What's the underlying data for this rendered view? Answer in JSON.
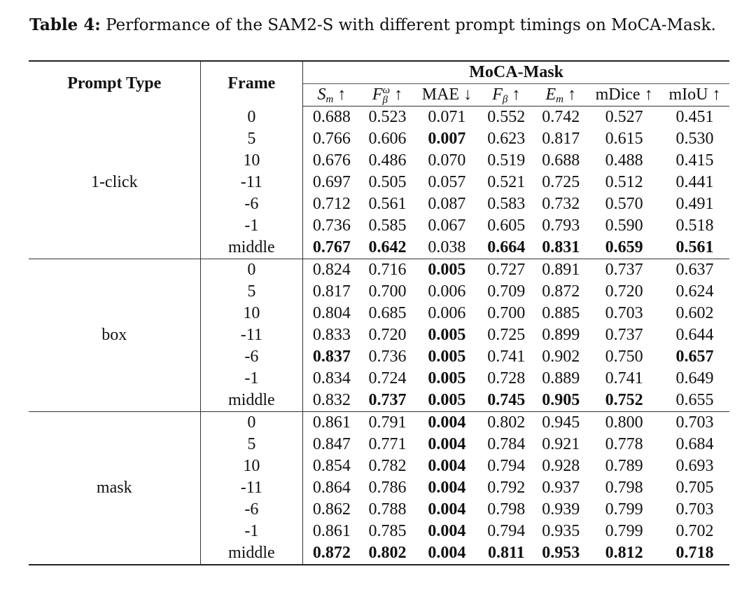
{
  "caption": {
    "label": "Table 4:",
    "text": "Performance of the SAM2-S with different prompt timings on MoCA-Mask."
  },
  "header": {
    "prompt_type": "Prompt Type",
    "frame": "Frame",
    "dataset": "MoCA-Mask",
    "metrics": [
      {
        "main": "S",
        "sub": "m",
        "sup": "",
        "italic": true,
        "arrow": "↑"
      },
      {
        "main": "F",
        "sub": "β",
        "sup": "ω",
        "italic": true,
        "arrow": "↑"
      },
      {
        "main": "MAE",
        "sub": "",
        "sup": "",
        "italic": false,
        "arrow": "↓"
      },
      {
        "main": "F",
        "sub": "β",
        "sup": "",
        "italic": true,
        "arrow": "↑"
      },
      {
        "main": "E",
        "sub": "m",
        "sup": "",
        "italic": true,
        "arrow": "↑"
      },
      {
        "main": "mDice",
        "sub": "",
        "sup": "",
        "italic": false,
        "arrow": "↑"
      },
      {
        "main": "mIoU",
        "sub": "",
        "sup": "",
        "italic": false,
        "arrow": "↑"
      }
    ]
  },
  "groups": [
    {
      "prompt_type": "1-click",
      "rows": [
        {
          "frame": "0",
          "values": [
            "0.688",
            "0.523",
            "0.071",
            "0.552",
            "0.742",
            "0.527",
            "0.451"
          ],
          "bold": [
            false,
            false,
            false,
            false,
            false,
            false,
            false
          ]
        },
        {
          "frame": "5",
          "values": [
            "0.766",
            "0.606",
            "0.007",
            "0.623",
            "0.817",
            "0.615",
            "0.530"
          ],
          "bold": [
            false,
            false,
            true,
            false,
            false,
            false,
            false
          ]
        },
        {
          "frame": "10",
          "values": [
            "0.676",
            "0.486",
            "0.070",
            "0.519",
            "0.688",
            "0.488",
            "0.415"
          ],
          "bold": [
            false,
            false,
            false,
            false,
            false,
            false,
            false
          ]
        },
        {
          "frame": "-11",
          "values": [
            "0.697",
            "0.505",
            "0.057",
            "0.521",
            "0.725",
            "0.512",
            "0.441"
          ],
          "bold": [
            false,
            false,
            false,
            false,
            false,
            false,
            false
          ]
        },
        {
          "frame": "-6",
          "values": [
            "0.712",
            "0.561",
            "0.087",
            "0.583",
            "0.732",
            "0.570",
            "0.491"
          ],
          "bold": [
            false,
            false,
            false,
            false,
            false,
            false,
            false
          ]
        },
        {
          "frame": "-1",
          "values": [
            "0.736",
            "0.585",
            "0.067",
            "0.605",
            "0.793",
            "0.590",
            "0.518"
          ],
          "bold": [
            false,
            false,
            false,
            false,
            false,
            false,
            false
          ]
        },
        {
          "frame": "middle",
          "values": [
            "0.767",
            "0.642",
            "0.038",
            "0.664",
            "0.831",
            "0.659",
            "0.561"
          ],
          "bold": [
            true,
            true,
            false,
            true,
            true,
            true,
            true
          ]
        }
      ]
    },
    {
      "prompt_type": "box",
      "rows": [
        {
          "frame": "0",
          "values": [
            "0.824",
            "0.716",
            "0.005",
            "0.727",
            "0.891",
            "0.737",
            "0.637"
          ],
          "bold": [
            false,
            false,
            true,
            false,
            false,
            false,
            false
          ]
        },
        {
          "frame": "5",
          "values": [
            "0.817",
            "0.700",
            "0.006",
            "0.709",
            "0.872",
            "0.720",
            "0.624"
          ],
          "bold": [
            false,
            false,
            false,
            false,
            false,
            false,
            false
          ]
        },
        {
          "frame": "10",
          "values": [
            "0.804",
            "0.685",
            "0.006",
            "0.700",
            "0.885",
            "0.703",
            "0.602"
          ],
          "bold": [
            false,
            false,
            false,
            false,
            false,
            false,
            false
          ]
        },
        {
          "frame": "-11",
          "values": [
            "0.833",
            "0.720",
            "0.005",
            "0.725",
            "0.899",
            "0.737",
            "0.644"
          ],
          "bold": [
            false,
            false,
            true,
            false,
            false,
            false,
            false
          ]
        },
        {
          "frame": "-6",
          "values": [
            "0.837",
            "0.736",
            "0.005",
            "0.741",
            "0.902",
            "0.750",
            "0.657"
          ],
          "bold": [
            true,
            false,
            true,
            false,
            false,
            false,
            true
          ]
        },
        {
          "frame": "-1",
          "values": [
            "0.834",
            "0.724",
            "0.005",
            "0.728",
            "0.889",
            "0.741",
            "0.649"
          ],
          "bold": [
            false,
            false,
            true,
            false,
            false,
            false,
            false
          ]
        },
        {
          "frame": "middle",
          "values": [
            "0.832",
            "0.737",
            "0.005",
            "0.745",
            "0.905",
            "0.752",
            "0.655"
          ],
          "bold": [
            false,
            true,
            true,
            true,
            true,
            true,
            false
          ]
        }
      ]
    },
    {
      "prompt_type": "mask",
      "rows": [
        {
          "frame": "0",
          "values": [
            "0.861",
            "0.791",
            "0.004",
            "0.802",
            "0.945",
            "0.800",
            "0.703"
          ],
          "bold": [
            false,
            false,
            true,
            false,
            false,
            false,
            false
          ]
        },
        {
          "frame": "5",
          "values": [
            "0.847",
            "0.771",
            "0.004",
            "0.784",
            "0.921",
            "0.778",
            "0.684"
          ],
          "bold": [
            false,
            false,
            true,
            false,
            false,
            false,
            false
          ]
        },
        {
          "frame": "10",
          "values": [
            "0.854",
            "0.782",
            "0.004",
            "0.794",
            "0.928",
            "0.789",
            "0.693"
          ],
          "bold": [
            false,
            false,
            true,
            false,
            false,
            false,
            false
          ]
        },
        {
          "frame": "-11",
          "values": [
            "0.864",
            "0.786",
            "0.004",
            "0.792",
            "0.937",
            "0.798",
            "0.705"
          ],
          "bold": [
            false,
            false,
            true,
            false,
            false,
            false,
            false
          ]
        },
        {
          "frame": "-6",
          "values": [
            "0.862",
            "0.788",
            "0.004",
            "0.798",
            "0.939",
            "0.799",
            "0.703"
          ],
          "bold": [
            false,
            false,
            true,
            false,
            false,
            false,
            false
          ]
        },
        {
          "frame": "-1",
          "values": [
            "0.861",
            "0.785",
            "0.004",
            "0.794",
            "0.935",
            "0.799",
            "0.702"
          ],
          "bold": [
            false,
            false,
            true,
            false,
            false,
            false,
            false
          ]
        },
        {
          "frame": "middle",
          "values": [
            "0.872",
            "0.802",
            "0.004",
            "0.811",
            "0.953",
            "0.812",
            "0.718"
          ],
          "bold": [
            true,
            true,
            true,
            true,
            true,
            true,
            true
          ]
        }
      ]
    }
  ]
}
